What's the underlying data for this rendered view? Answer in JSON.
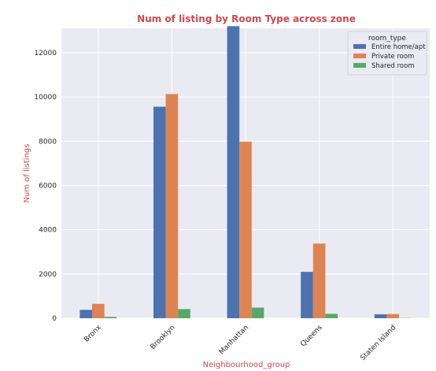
{
  "chart_data": {
    "type": "bar",
    "title": "Num of listing by Room Type across zone",
    "xlabel": "Neighbourhood_group",
    "ylabel": "Num of listings",
    "categories": [
      "Bronx",
      "Brooklyn",
      "Manhattan",
      "Queens",
      "Staten Island"
    ],
    "series": [
      {
        "name": "Entire home/apt",
        "color": "#4c72b0",
        "values": [
          379,
          9559,
          13199,
          2096,
          176
        ]
      },
      {
        "name": "Private room",
        "color": "#dd8452",
        "values": [
          652,
          10132,
          7982,
          3372,
          188
        ]
      },
      {
        "name": "Shared room",
        "color": "#55a868",
        "values": [
          60,
          413,
          480,
          198,
          9
        ]
      }
    ],
    "ylim": [
      0,
      13100
    ],
    "yticks": [
      0,
      2000,
      4000,
      6000,
      8000,
      10000,
      12000
    ],
    "grid": true,
    "legend": {
      "title": "room_type",
      "position": "top-right"
    }
  }
}
